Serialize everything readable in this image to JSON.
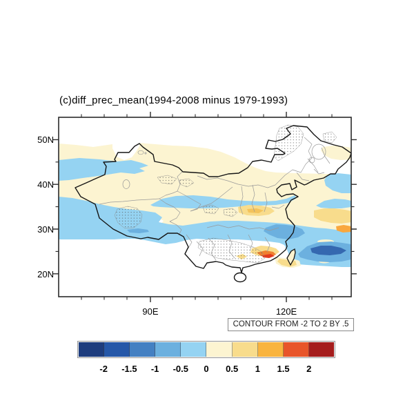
{
  "title": "(c)diff_prec_mean(1994-2008 minus 1979-1993)",
  "map": {
    "y_tick_labels": [
      "50N",
      "40N",
      "30N",
      "20N"
    ],
    "x_tick_labels": [
      "90E",
      "120E"
    ],
    "contour_note": "CONTOUR FROM -2 TO 2 BY .5"
  },
  "colorbar": {
    "tick_labels": [
      "-2",
      "-1.5",
      "-1",
      "-0.5",
      "0",
      "0.5",
      "1",
      "1.5",
      "2"
    ],
    "colors": [
      "#1e3d7e",
      "#2557a8",
      "#4480c2",
      "#6cb0df",
      "#95d3f2",
      "#fcf4d1",
      "#f8dc8c",
      "#f9b43f",
      "#e8552a",
      "#a51d1d"
    ]
  },
  "chart_data": {
    "type": "heatmap",
    "subtype": "filled-contour-map",
    "title": "(c)diff_prec_mean(1994-2008 minus 1979-1993)",
    "region": "China and adjacent seas",
    "variable": "mean precipitation difference, 1994-2008 minus 1979-1993",
    "lon_range": [
      "70E",
      "134E"
    ],
    "lat_range": [
      "15N",
      "55N"
    ],
    "x_tick_labels": [
      "90E",
      "120E"
    ],
    "y_tick_labels": [
      "20N",
      "30N",
      "40N",
      "50N"
    ],
    "contour_levels": [
      -2,
      -1.5,
      -1,
      -0.5,
      0,
      0.5,
      1,
      1.5,
      2
    ],
    "contour_interval": 0.5,
    "contour_note": "CONTOUR FROM -2 TO 2 BY .5",
    "legend_position": "horizontal colorbar below map",
    "shaded_features": [
      {
        "value_range": "0 to 0.5",
        "lat_band": "41N-49N",
        "lon_band": "70E-120E",
        "note": "pale-yellow band across far northern China"
      },
      {
        "value_range": "-0.5 to 0",
        "lat_band": "41N-46N",
        "lon_band": "70E-93E",
        "note": "light-blue band over northern Xinjiang"
      },
      {
        "value_range": "0 to 0.5",
        "lat_band": "33N-41N",
        "lon_band": "70E-134E",
        "note": "broad pale-yellow band through central China reaching east edge"
      },
      {
        "value_range": "-0.5 to 0",
        "lat_band": "35N-38N",
        "lon_band": "90E-134E",
        "note": "thin light-blue streak through north-central China and Bohai"
      },
      {
        "value_range": "-0.5 to 0",
        "lat_band": "27N-35N",
        "lon_band": "70E-134E",
        "note": "broad light-blue band across Tibet, Yangtze valley and East China Sea"
      },
      {
        "value_range": "-1 to -0.5",
        "lat_band": "30N-32N",
        "lon_band": "116E-124E",
        "note": "medium-blue patch near Yangtze mouth / Zhejiang coast"
      },
      {
        "value_range": "-1.5 to -1",
        "lat_band": "23N-27N",
        "lon_band": "125E-134E",
        "note": "dark-blue core over NW Pacific southeast of Taiwan"
      },
      {
        "value_range": "0.5 to 1",
        "lat_band": "33N-36N",
        "lon_band": "109E-117E",
        "note": "yellow patch over the North China Plain"
      },
      {
        "value_range": "0.5 to 1.5",
        "lat_band": "29N-34N",
        "lon_band": "126E-134E",
        "note": "yellow band with orange sliver at eastern map edge"
      },
      {
        "value_range": "1 to >2",
        "lat_band": "22N-24N",
        "lon_band": "112E-121E",
        "note": "orange and red spots along the SE coast / Taiwan Strait"
      },
      {
        "value_range": "near 0 (white)",
        "note": "Northeast China, interior South China, far south and far north are unshaded"
      },
      {
        "feature": "stippling",
        "note": "dotted significance stippling over Tibetan Plateau, Inner Mongolia, Northeast China and South China"
      }
    ]
  }
}
